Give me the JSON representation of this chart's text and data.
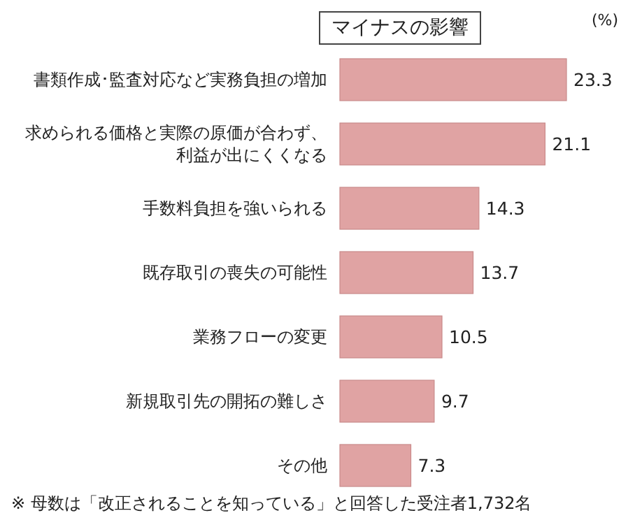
{
  "chart_data": {
    "type": "bar",
    "orientation": "horizontal",
    "title": "マイナスの影響",
    "xlabel": "(%)",
    "categories": [
      "書類作成･監査対応など実務負担の増加",
      "求められる価格と実際の原価が合わず、利益が出にくくなる",
      "手数料負担を強いられる",
      "既存取引の喪失の可能性",
      "業務フローの変更",
      "新規取引先の開拓の難しさ",
      "その他"
    ],
    "values": [
      23.3,
      21.1,
      14.3,
      13.7,
      10.5,
      9.7,
      7.3
    ],
    "color": "#e0a3a3",
    "data_labels": true,
    "annotations": [
      "※ 母数は「改正されることを知っている」と回答した受注者1,732名"
    ]
  }
}
